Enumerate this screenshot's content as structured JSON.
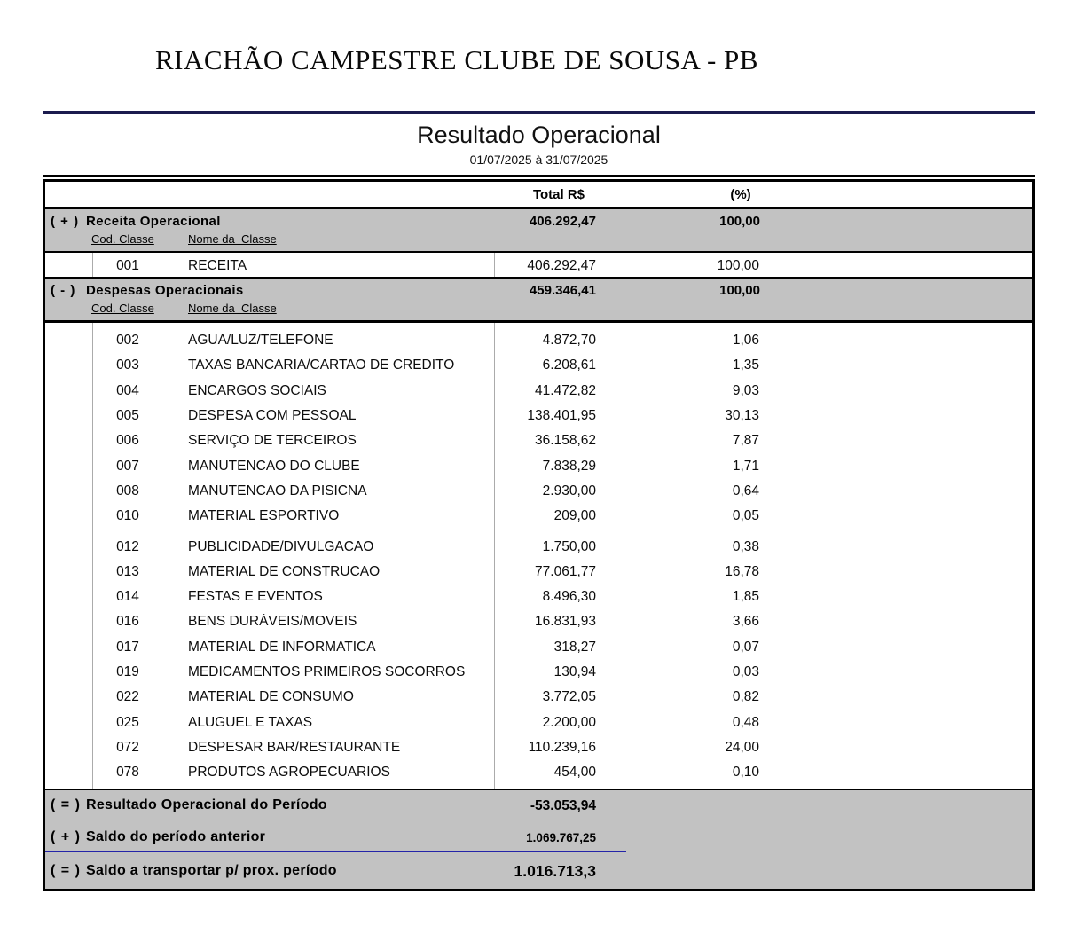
{
  "header": {
    "company": "RIACHÃO CAMPESTRE CLUBE DE SOUSA - PB",
    "report_title": "Resultado Operacional",
    "period": "01/07/2025 à 31/07/2025"
  },
  "columns": {
    "total": "Total R$",
    "percent": "(%)"
  },
  "sections": [
    {
      "sign": "( + )",
      "label": "Receita Operacional",
      "total": "406.292,47",
      "percent": "100,00",
      "sub_code_header": "Cod. Classe",
      "sub_name_header": "Nome da  Classe",
      "rows": [
        {
          "code": "001",
          "name": "RECEITA",
          "total": "406.292,47",
          "percent": "100,00"
        }
      ]
    },
    {
      "sign": "( - )",
      "label": "Despesas Operacionais",
      "total": "459.346,41",
      "percent": "100,00",
      "sub_code_header": "Cod. Classe",
      "sub_name_header": "Nome da  Classe",
      "rows": [
        {
          "code": "002",
          "name": "AGUA/LUZ/TELEFONE",
          "total": "4.872,70",
          "percent": "1,06"
        },
        {
          "code": "003",
          "name": "TAXAS BANCARIA/CARTAO DE CREDITO",
          "total": "6.208,61",
          "percent": "1,35"
        },
        {
          "code": "004",
          "name": "ENCARGOS SOCIAIS",
          "total": "41.472,82",
          "percent": "9,03"
        },
        {
          "code": "005",
          "name": "DESPESA COM PESSOAL",
          "total": "138.401,95",
          "percent": "30,13"
        },
        {
          "code": "006",
          "name": "SERVIÇO DE TERCEIROS",
          "total": "36.158,62",
          "percent": "7,87"
        },
        {
          "code": "007",
          "name": "MANUTENCAO DO CLUBE",
          "total": "7.838,29",
          "percent": "1,71"
        },
        {
          "code": "008",
          "name": "MANUTENCAO DA PISICNA",
          "total": "2.930,00",
          "percent": "0,64"
        },
        {
          "code": "010",
          "name": "MATERIAL ESPORTIVO",
          "total": "209,00",
          "percent": "0,05"
        },
        {
          "code": "012",
          "name": "PUBLICIDADE/DIVULGACAO",
          "total": "1.750,00",
          "percent": "0,38",
          "gap_before": true
        },
        {
          "code": "013",
          "name": "MATERIAL DE CONSTRUCAO",
          "total": "77.061,77",
          "percent": "16,78"
        },
        {
          "code": "014",
          "name": "FESTAS E EVENTOS",
          "total": "8.496,30",
          "percent": "1,85"
        },
        {
          "code": "016",
          "name": "BENS DURÁVEIS/MOVEIS",
          "total": "16.831,93",
          "percent": "3,66"
        },
        {
          "code": "017",
          "name": "MATERIAL DE INFORMATICA",
          "total": "318,27",
          "percent": "0,07"
        },
        {
          "code": "019",
          "name": "MEDICAMENTOS PRIMEIROS SOCORROS",
          "total": "130,94",
          "percent": "0,03"
        },
        {
          "code": "022",
          "name": "MATERIAL DE CONSUMO",
          "total": "3.772,05",
          "percent": "0,82"
        },
        {
          "code": "025",
          "name": "ALUGUEL E TAXAS",
          "total": "2.200,00",
          "percent": "0,48"
        },
        {
          "code": "072",
          "name": "DESPESAR BAR/RESTAURANTE",
          "total": "110.239,16",
          "percent": "24,00"
        },
        {
          "code": "078",
          "name": "PRODUTOS AGROPECUARIOS",
          "total": "454,00",
          "percent": "0,10"
        }
      ]
    }
  ],
  "summary": [
    {
      "sign": "( = )",
      "label": "Resultado Operacional do Período",
      "value": "-53.053,94"
    },
    {
      "sign": "( + )",
      "label": "Saldo do período anterior",
      "value": "1.069.767,25"
    },
    {
      "sign": "( = )",
      "label": "Saldo a transportar p/ prox. período",
      "value": "1.016.713,3"
    }
  ],
  "colors": {
    "band_gray": "#c2c2c2",
    "header_rule_navy": "#1b1b4e",
    "summary_rule_blue": "#2424a8",
    "table_border": "#000000"
  }
}
